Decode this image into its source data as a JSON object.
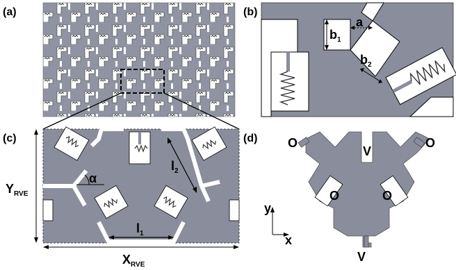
{
  "panel_labels": {
    "a": "(a)",
    "b": "(b)",
    "c": "(c)",
    "d": "(d)"
  },
  "panel_b": {
    "a": "a",
    "b1_main": "b",
    "b1_sub": "1",
    "b2_main": "b",
    "b2_sub": "2"
  },
  "panel_c": {
    "alpha": "α",
    "l1_main": "l",
    "l1_sub": "1",
    "l2_main": "l",
    "l2_sub": "2",
    "x_main": "X",
    "x_sub": "RVE",
    "y_main": "Y",
    "y_sub": "RVE"
  },
  "panel_d": {
    "v_top": "V",
    "v_bottom": "V",
    "o_left": "O",
    "o_right": "O",
    "o_inner_left": "O",
    "o_inner_right": "O",
    "axis_x": "x",
    "axis_y": "y"
  },
  "colors": {
    "metamaterial": "#8a8d9b",
    "slot": "#ffffff",
    "spring": "#444444",
    "outline": "#000000"
  }
}
